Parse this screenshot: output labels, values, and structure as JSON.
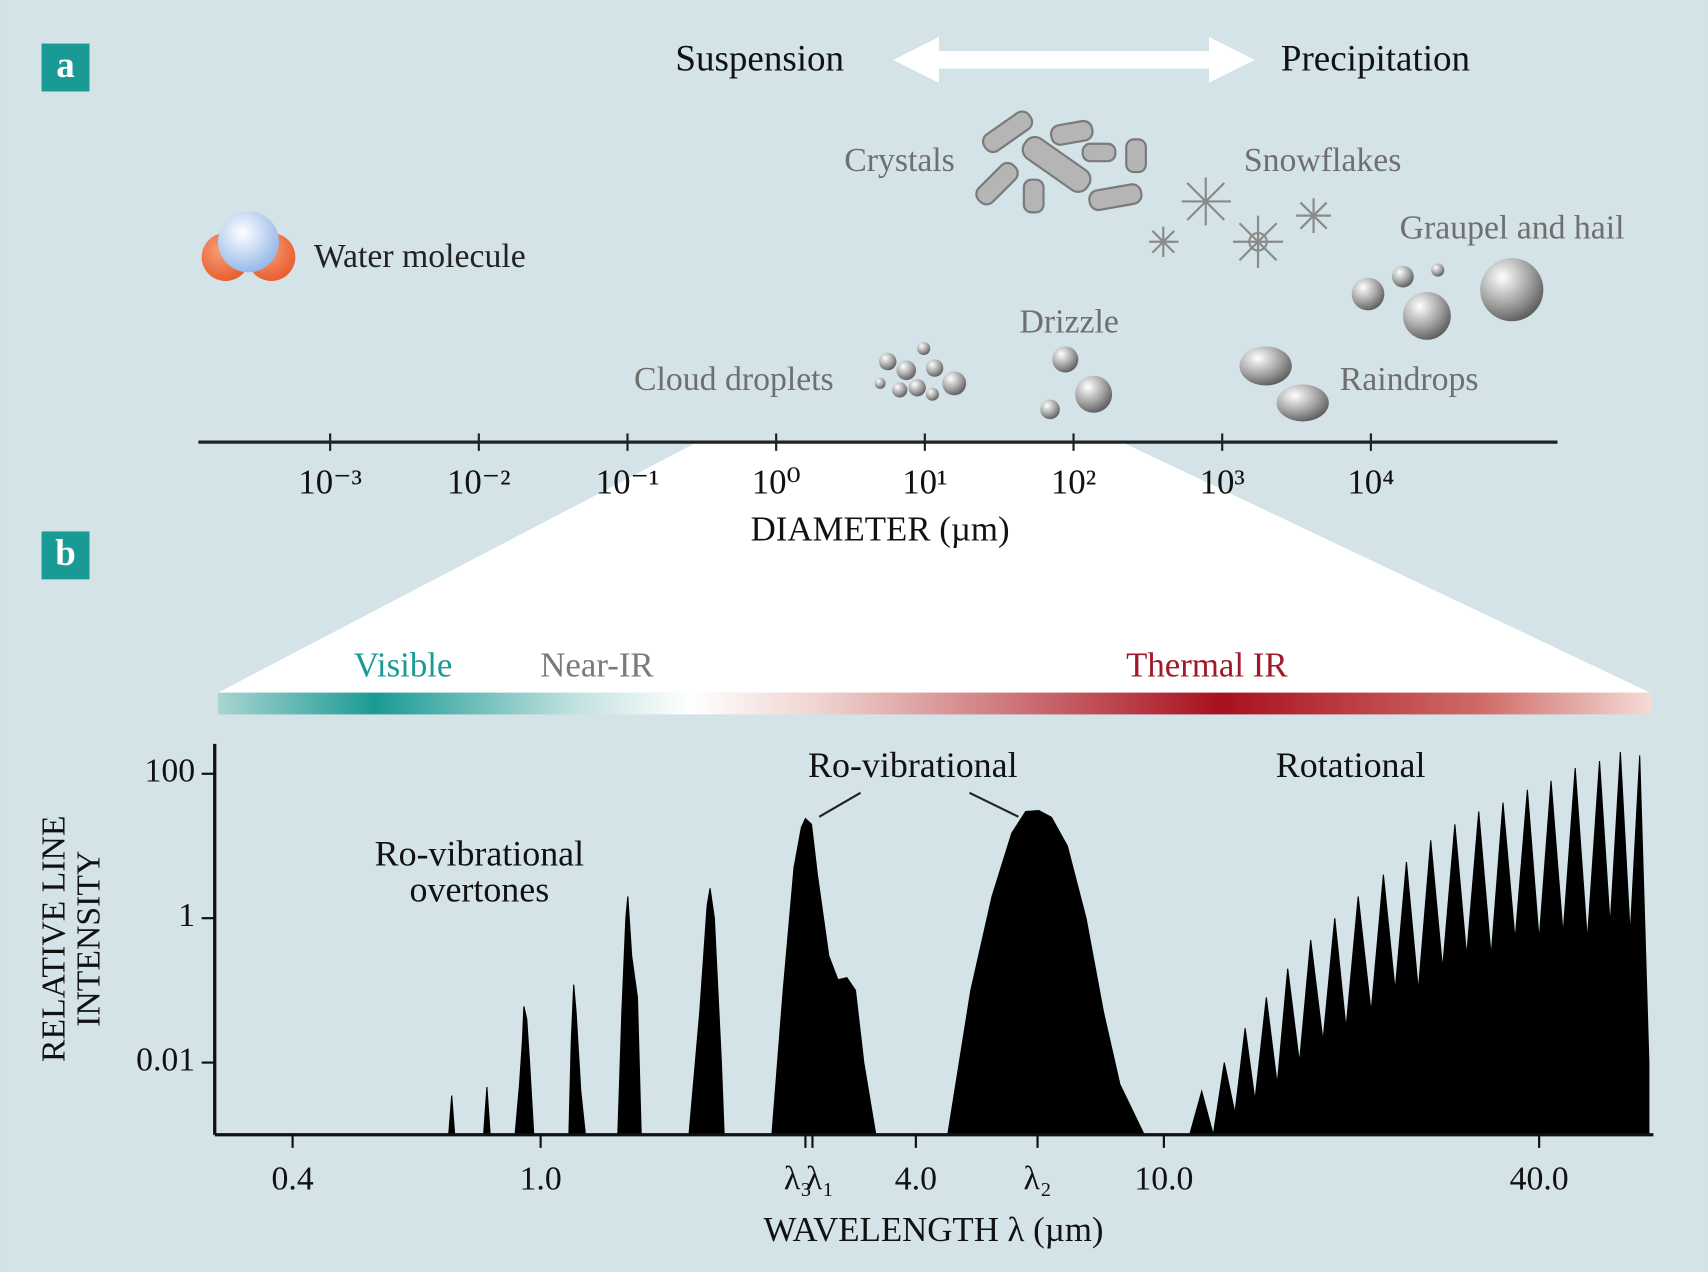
{
  "chart_data": [
    {
      "type": "scale",
      "panel": "a",
      "header": [
        "Suspension",
        "Precipitation"
      ],
      "labels": [
        "Water molecule",
        "Crystals",
        "Snowflakes",
        "Graupel and hail",
        "Drizzle",
        "Cloud droplets",
        "Raindrops"
      ],
      "xlabel": "DIAMETER (µm)",
      "xscale": "log",
      "xlim": [
        0.00013,
        180000
      ],
      "xticks": [
        {
          "value": 0.001,
          "label": "10⁻³"
        },
        {
          "value": 0.01,
          "label": "10⁻²"
        },
        {
          "value": 0.1,
          "label": "10⁻¹"
        },
        {
          "value": 1,
          "label": "10⁰"
        },
        {
          "value": 10,
          "label": "10¹"
        },
        {
          "value": 100,
          "label": "10²"
        },
        {
          "value": 1000,
          "label": "10³"
        },
        {
          "value": 10000,
          "label": "10⁴"
        }
      ]
    },
    {
      "type": "spectrum",
      "panel": "b",
      "bands": [
        "Visible",
        "Near-IR",
        "Thermal IR"
      ],
      "annotations": [
        {
          "lines": [
            "Ro-vibrational",
            "overtones"
          ]
        },
        {
          "lines": [
            "Ro-vibrational"
          ]
        },
        {
          "lines": [
            "Rotational"
          ]
        }
      ],
      "ylabel": [
        "RELATIVE LINE",
        "INTENSITY"
      ],
      "xlabel": "WAVELENGTH λ (µm)",
      "xscale": "log",
      "yscale": "log",
      "xlim": [
        0.3,
        61
      ],
      "ylim": [
        0.001,
        260
      ],
      "xticks": [
        0.4,
        {
          "value": 1,
          "label": "1.0"
        },
        {
          "value": 2.66,
          "label": "λ₃"
        },
        {
          "value": 2.73,
          "label": "λ₁"
        },
        {
          "value": 4,
          "label": "4.0"
        },
        {
          "value": 6.27,
          "label": "λ₂"
        },
        {
          "value": 10,
          "label": "10.0"
        },
        {
          "value": 40,
          "label": "40.0"
        }
      ],
      "yticks": [
        0.01,
        1,
        100
      ],
      "series": [
        {
          "color": "#000000",
          "x": [
            0.712,
            0.72,
            0.728,
            null,
            0.81,
            0.82,
            0.83,
            null,
            0.91,
            0.925,
            0.935,
            0.94,
            0.95,
            0.96,
            0.975,
            null,
            1.11,
            1.12,
            1.13,
            1.14,
            1.16,
            1.18,
            null,
            1.33,
            1.35,
            1.37,
            1.38,
            1.4,
            1.43,
            1.45,
            null,
            1.73,
            1.8,
            1.85,
            1.87,
            1.9,
            1.95,
            1.97,
            null,
            2.35,
            2.45,
            2.55,
            2.62,
            2.66,
            2.72,
            2.78,
            2.9,
            3,
            3.1,
            3.2,
            3.3,
            3.45,
            null,
            4.5,
            4.9,
            5.3,
            5.7,
            6,
            6.3,
            6.6,
            7,
            7.5,
            8,
            8.5,
            9.3,
            null,
            11,
            11.5,
            12,
            12.5,
            13,
            13.5,
            14,
            14.6,
            15.2,
            15.8,
            16.5,
            17.2,
            18,
            18.8,
            19.6,
            20.5,
            21.5,
            22.5,
            23.5,
            24.5,
            25.6,
            26.8,
            28,
            29.3,
            30.6,
            32,
            33.5,
            35,
            36.6,
            38.3,
            40,
            41.8,
            43.7,
            45.7,
            47.8,
            50,
            52,
            54,
            56,
            58,
            60
          ],
          "values": [
            0.001,
            0.0035,
            0.001,
            null,
            0.001,
            0.0046,
            0.001,
            null,
            0.001,
            0.005,
            0.02,
            0.06,
            0.04,
            0.01,
            0.001,
            null,
            0.001,
            0.02,
            0.12,
            0.05,
            0.004,
            0.001,
            null,
            0.001,
            0.05,
            1,
            2,
            0.3,
            0.08,
            0.001,
            null,
            0.001,
            0.05,
            1.5,
            2.6,
            1,
            0.01,
            0.001,
            null,
            0.001,
            0.1,
            5,
            18,
            24,
            20,
            4,
            0.3,
            0.14,
            0.15,
            0.1,
            0.01,
            0.001,
            null,
            0.001,
            0.1,
            2,
            15,
            30,
            31,
            25,
            10,
            1,
            0.05,
            0.005,
            0.001,
            null,
            0.001,
            0.004,
            0.001,
            0.01,
            0.002,
            0.03,
            0.003,
            0.08,
            0.005,
            0.2,
            0.01,
            0.5,
            0.02,
            1,
            0.03,
            2,
            0.05,
            4,
            0.1,
            6,
            0.1,
            12,
            0.2,
            20,
            0.3,
            30,
            0.3,
            40,
            0.5,
            60,
            0.5,
            80,
            0.6,
            120,
            0.5,
            150,
            0.8,
            200,
            0.6,
            180,
            0.01
          ]
        }
      ]
    }
  ]
}
